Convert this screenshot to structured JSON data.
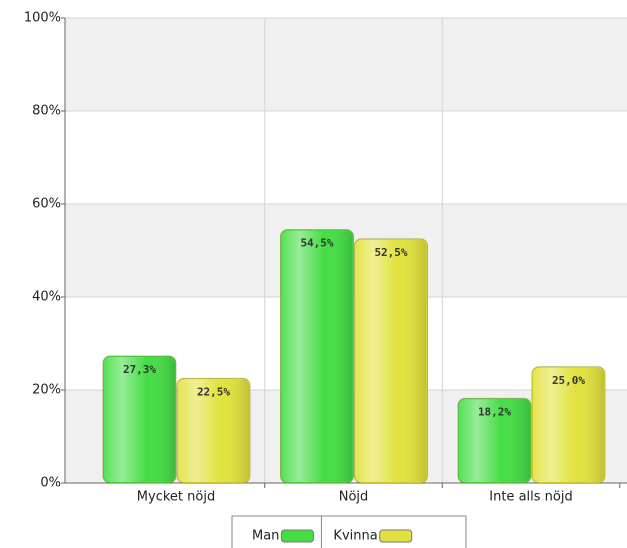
{
  "chart_data": {
    "type": "bar",
    "categories": [
      "Mycket nöjd",
      "Nöjd",
      "Inte alls nöjd"
    ],
    "series": [
      {
        "name": "Man",
        "color": "#44dd44",
        "values": [
          27.3,
          54.5,
          18.2
        ],
        "value_labels": [
          "27,3%",
          "54,5%",
          "18,2%"
        ]
      },
      {
        "name": "Kvinna",
        "color": "#e2e23c",
        "values": [
          22.5,
          52.5,
          25.0
        ],
        "value_labels": [
          "22,5%",
          "52,5%",
          "25,0%"
        ]
      }
    ],
    "ylim": [
      0,
      100
    ],
    "yticks": [
      {
        "value": 0,
        "label": "0%"
      },
      {
        "value": 20,
        "label": "20%"
      },
      {
        "value": 40,
        "label": "40%"
      },
      {
        "value": 60,
        "label": "60%"
      },
      {
        "value": 80,
        "label": "80%"
      },
      {
        "value": 100,
        "label": "100%"
      }
    ],
    "grid": true,
    "legend": "bottom"
  }
}
